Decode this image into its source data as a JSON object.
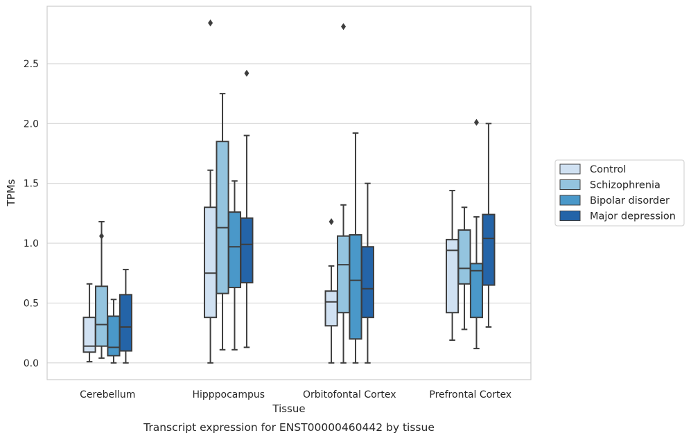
{
  "chart_data": {
    "type": "box",
    "title": "",
    "caption": "Transcript expression for ENST00000460442 by tissue",
    "xlabel": "Tissue",
    "ylabel": "TPMs",
    "ylim": [
      -0.14,
      2.98
    ],
    "yticks": [
      0.0,
      0.5,
      1.0,
      1.5,
      2.0,
      2.5
    ],
    "ytick_labels": [
      "0.0",
      "0.5",
      "1.0",
      "1.5",
      "2.0",
      "2.5"
    ],
    "grid": "horizontal",
    "legend_position": "right",
    "categories": [
      "Cerebellum",
      "Hipppocampus",
      "Orbitofontal Cortex",
      "Prefrontal Cortex"
    ],
    "series": [
      {
        "name": "Control",
        "color": "#d0e1f2",
        "boxes": [
          {
            "whislo": 0.01,
            "q1": 0.09,
            "med": 0.14,
            "q3": 0.38,
            "whishi": 0.66,
            "fliers": []
          },
          {
            "whislo": 0.0,
            "q1": 0.38,
            "med": 0.75,
            "q3": 1.3,
            "whishi": 1.61,
            "fliers": [
              2.84
            ]
          },
          {
            "whislo": 0.0,
            "q1": 0.31,
            "med": 0.51,
            "q3": 0.6,
            "whishi": 0.81,
            "fliers": [
              1.18
            ]
          },
          {
            "whislo": 0.19,
            "q1": 0.42,
            "med": 0.94,
            "q3": 1.03,
            "whishi": 1.44,
            "fliers": []
          }
        ]
      },
      {
        "name": "Schizophrenia",
        "color": "#94c4df",
        "boxes": [
          {
            "whislo": 0.04,
            "q1": 0.14,
            "med": 0.32,
            "q3": 0.64,
            "whishi": 1.18,
            "fliers": [
              1.06
            ]
          },
          {
            "whislo": 0.11,
            "q1": 0.58,
            "med": 1.13,
            "q3": 1.85,
            "whishi": 2.25,
            "fliers": []
          },
          {
            "whislo": 0.0,
            "q1": 0.42,
            "med": 0.82,
            "q3": 1.06,
            "whishi": 1.32,
            "fliers": [
              2.81
            ]
          },
          {
            "whislo": 0.28,
            "q1": 0.66,
            "med": 0.79,
            "q3": 1.11,
            "whishi": 1.3,
            "fliers": []
          }
        ]
      },
      {
        "name": "Bipolar disorder",
        "color": "#4a98c9",
        "boxes": [
          {
            "whislo": 0.0,
            "q1": 0.06,
            "med": 0.13,
            "q3": 0.39,
            "whishi": 0.53,
            "fliers": []
          },
          {
            "whislo": 0.11,
            "q1": 0.63,
            "med": 0.97,
            "q3": 1.26,
            "whishi": 1.52,
            "fliers": []
          },
          {
            "whislo": 0.0,
            "q1": 0.2,
            "med": 0.69,
            "q3": 1.07,
            "whishi": 1.92,
            "fliers": []
          },
          {
            "whislo": 0.12,
            "q1": 0.38,
            "med": 0.77,
            "q3": 0.83,
            "whishi": 1.22,
            "fliers": [
              2.01
            ]
          }
        ]
      },
      {
        "name": "Major depression",
        "color": "#2464a8",
        "boxes": [
          {
            "whislo": 0.0,
            "q1": 0.1,
            "med": 0.3,
            "q3": 0.57,
            "whishi": 0.78,
            "fliers": []
          },
          {
            "whislo": 0.13,
            "q1": 0.67,
            "med": 0.99,
            "q3": 1.21,
            "whishi": 1.9,
            "fliers": [
              2.42
            ]
          },
          {
            "whislo": 0.0,
            "q1": 0.38,
            "med": 0.62,
            "q3": 0.97,
            "whishi": 1.5,
            "fliers": []
          },
          {
            "whislo": 0.3,
            "q1": 0.65,
            "med": 1.04,
            "q3": 1.24,
            "whishi": 2.0,
            "fliers": []
          }
        ]
      }
    ]
  }
}
